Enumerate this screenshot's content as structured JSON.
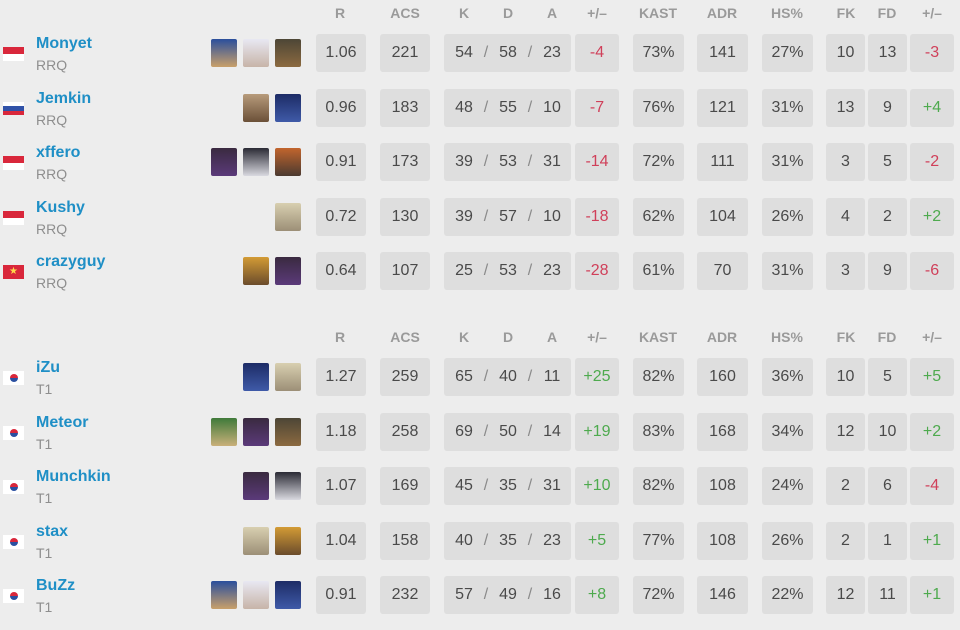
{
  "headers": {
    "r": "R",
    "acs": "ACS",
    "k": "K",
    "d": "D",
    "a": "A",
    "pm": "+/–",
    "kast": "KAST",
    "adr": "ADR",
    "hs": "HS%",
    "fk": "FK",
    "fd": "FD",
    "fkpm": "+/–"
  },
  "colors": {
    "positive": "#4eaa4e",
    "negative": "#d0405a",
    "name": "#1f8fc6"
  },
  "teams": [
    {
      "players": [
        {
          "name": "Monyet",
          "team": "RRQ",
          "flag": "indonesia",
          "agents": [
            "agent-blue-hair-icon",
            "agent-white-hair-icon",
            "agent-dark-goggles-icon"
          ],
          "r": "1.06",
          "acs": "221",
          "k": "54",
          "d": "58",
          "a": "23",
          "pm": "-4",
          "kast": "73%",
          "adr": "141",
          "hs": "27%",
          "fk": "10",
          "fd": "13",
          "fkpm": "-3"
        },
        {
          "name": "Jemkin",
          "team": "RRQ",
          "flag": "russia",
          "agents": [
            "agent-visor-icon",
            "agent-blue-hood-icon"
          ],
          "r": "0.96",
          "acs": "183",
          "k": "48",
          "d": "55",
          "a": "10",
          "pm": "-7",
          "kast": "76%",
          "adr": "121",
          "hs": "31%",
          "fk": "13",
          "fd": "9",
          "fkpm": "+4"
        },
        {
          "name": "xffero",
          "team": "RRQ",
          "flag": "indonesia",
          "agents": [
            "agent-purple-icon",
            "agent-masked-icon",
            "agent-orange-hair-icon"
          ],
          "r": "0.91",
          "acs": "173",
          "k": "39",
          "d": "53",
          "a": "31",
          "pm": "-14",
          "kast": "72%",
          "adr": "111",
          "hs": "31%",
          "fk": "3",
          "fd": "5",
          "fkpm": "-2"
        },
        {
          "name": "Kushy",
          "team": "RRQ",
          "flag": "indonesia",
          "agents": [
            "agent-blonde-icon"
          ],
          "r": "0.72",
          "acs": "130",
          "k": "39",
          "d": "57",
          "a": "10",
          "pm": "-18",
          "kast": "62%",
          "adr": "104",
          "hs": "26%",
          "fk": "4",
          "fd": "2",
          "fkpm": "+2"
        },
        {
          "name": "crazyguy",
          "team": "RRQ",
          "flag": "vietnam",
          "agents": [
            "agent-gold-visor-icon",
            "agent-purple-icon"
          ],
          "r": "0.64",
          "acs": "107",
          "k": "25",
          "d": "53",
          "a": "23",
          "pm": "-28",
          "kast": "61%",
          "adr": "70",
          "hs": "31%",
          "fk": "3",
          "fd": "9",
          "fkpm": "-6"
        }
      ]
    },
    {
      "players": [
        {
          "name": "iZu",
          "team": "T1",
          "flag": "korea",
          "agents": [
            "agent-blue-hood-icon",
            "agent-blonde-icon"
          ],
          "r": "1.27",
          "acs": "259",
          "k": "65",
          "d": "40",
          "a": "11",
          "pm": "+25",
          "kast": "82%",
          "adr": "160",
          "hs": "36%",
          "fk": "10",
          "fd": "5",
          "fkpm": "+5"
        },
        {
          "name": "Meteor",
          "team": "T1",
          "flag": "korea",
          "agents": [
            "agent-green-icon",
            "agent-purple-icon",
            "agent-dark-goggles-icon"
          ],
          "r": "1.18",
          "acs": "258",
          "k": "69",
          "d": "50",
          "a": "14",
          "pm": "+19",
          "kast": "83%",
          "adr": "168",
          "hs": "34%",
          "fk": "12",
          "fd": "10",
          "fkpm": "+2"
        },
        {
          "name": "Munchkin",
          "team": "T1",
          "flag": "korea",
          "agents": [
            "agent-purple-icon",
            "agent-masked-icon"
          ],
          "r": "1.07",
          "acs": "169",
          "k": "45",
          "d": "35",
          "a": "31",
          "pm": "+10",
          "kast": "82%",
          "adr": "108",
          "hs": "24%",
          "fk": "2",
          "fd": "6",
          "fkpm": "-4"
        },
        {
          "name": "stax",
          "team": "T1",
          "flag": "korea",
          "agents": [
            "agent-blonde-icon",
            "agent-gold-visor-icon"
          ],
          "r": "1.04",
          "acs": "158",
          "k": "40",
          "d": "35",
          "a": "23",
          "pm": "+5",
          "kast": "77%",
          "adr": "108",
          "hs": "26%",
          "fk": "2",
          "fd": "1",
          "fkpm": "+1"
        },
        {
          "name": "BuZz",
          "team": "T1",
          "flag": "korea",
          "agents": [
            "agent-blue-hair-icon",
            "agent-white-hair-icon",
            "agent-blue-hood-icon"
          ],
          "r": "0.91",
          "acs": "232",
          "k": "57",
          "d": "49",
          "a": "16",
          "pm": "+8",
          "kast": "72%",
          "adr": "146",
          "hs": "22%",
          "fk": "12",
          "fd": "11",
          "fkpm": "+1"
        }
      ]
    }
  ]
}
